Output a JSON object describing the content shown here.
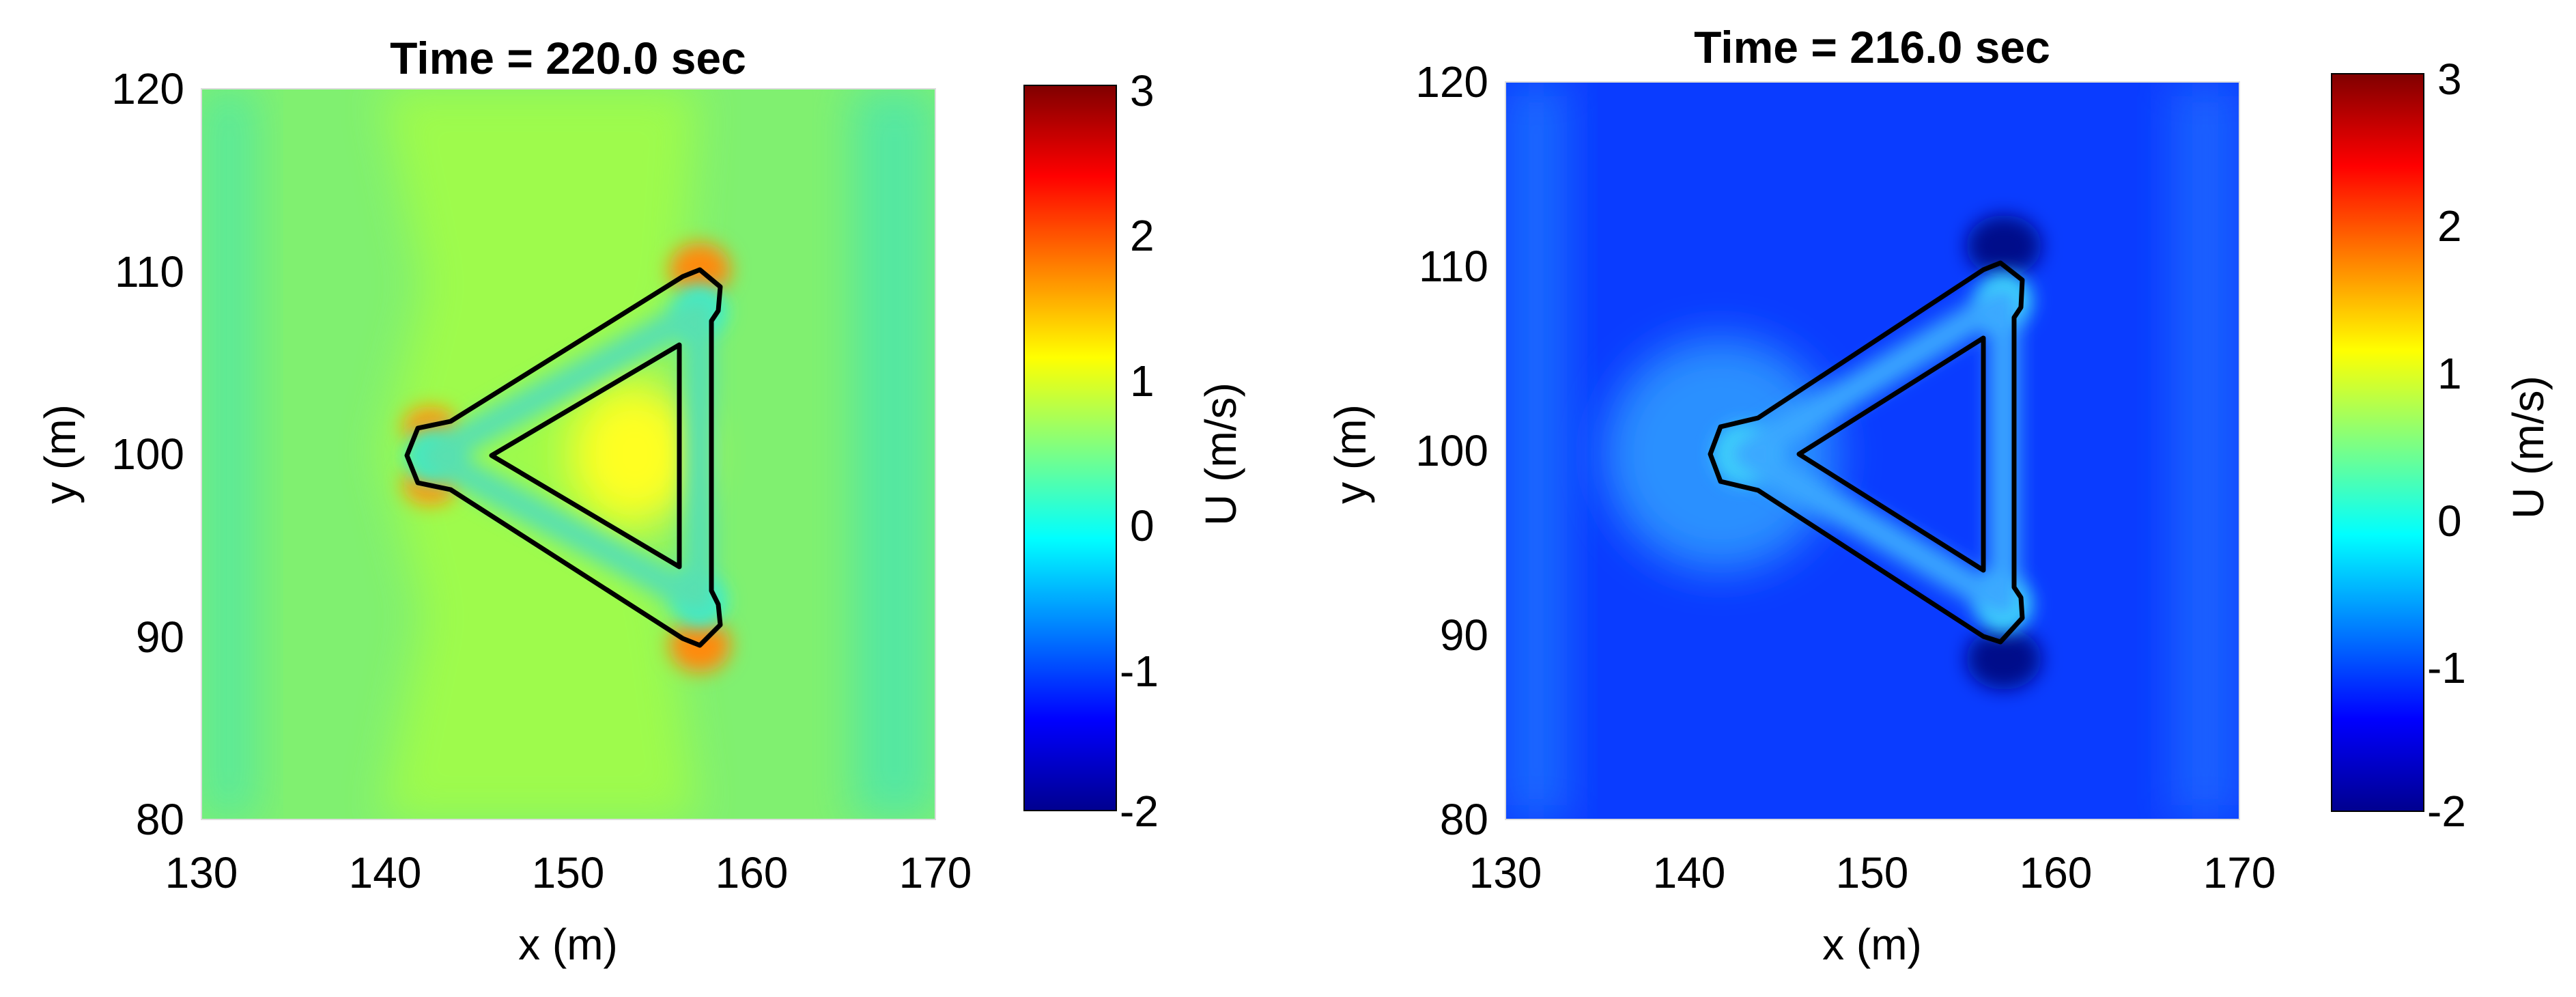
{
  "chart_data": [
    {
      "type": "heatmap",
      "title": "Time = 220.0 sec",
      "xlabel": "x (m)",
      "ylabel": "y (m)",
      "xlim": [
        130,
        170
      ],
      "ylim": [
        80,
        120
      ],
      "xticks": [
        "130",
        "140",
        "150",
        "160",
        "170"
      ],
      "yticks": [
        "80",
        "90",
        "100",
        "110",
        "120"
      ],
      "colorbar": {
        "label": "U (m/s)",
        "range": [
          -2,
          3
        ],
        "ticks": [
          "-2",
          "-1",
          "0",
          "1",
          "2",
          "3"
        ],
        "colormap": "jet"
      },
      "background_value": 0.62,
      "features": [
        {
          "name": "triangular structure outline",
          "vertices_xy": [
            [
              141.5,
              100
            ],
            [
              157,
              108
            ],
            [
              157,
              92
            ]
          ]
        },
        {
          "name": "corner flow hotspots",
          "points": [
            {
              "x": 141.5,
              "y": 100,
              "value": 0.1
            },
            {
              "x": 157,
              "y": 108,
              "value": 0.0
            },
            {
              "x": 157,
              "y": 92,
              "value": 0.0
            },
            {
              "x": 157.5,
              "y": 110,
              "value": 1.6
            },
            {
              "x": 157.5,
              "y": 90,
              "value": 1.6
            },
            {
              "x": 141,
              "y": 101.5,
              "value": 1.5
            },
            {
              "x": 141,
              "y": 98.5,
              "value": 1.5
            },
            {
              "x": 153,
              "y": 100,
              "value": 1.15
            }
          ]
        }
      ]
    },
    {
      "type": "heatmap",
      "title": "Time = 216.0 sec",
      "xlabel": "x (m)",
      "ylabel": "y (m)",
      "xlim": [
        130,
        170
      ],
      "ylim": [
        80,
        120
      ],
      "xticks": [
        "130",
        "140",
        "150",
        "160",
        "170"
      ],
      "yticks": [
        "80",
        "90",
        "100",
        "110",
        "120"
      ],
      "colorbar": {
        "label": "U (m/s)",
        "range": [
          -2,
          3
        ],
        "ticks": [
          "-2",
          "-1",
          "0",
          "1",
          "2",
          "3"
        ],
        "colormap": "jet"
      },
      "background_value": -1.2,
      "features": [
        {
          "name": "triangular structure outline",
          "vertices_xy": [
            [
              141.5,
              100
            ],
            [
              157,
              108
            ],
            [
              157,
              92
            ]
          ]
        },
        {
          "name": "corner flow hotspots",
          "points": [
            {
              "x": 141.5,
              "y": 100,
              "value": -0.1
            },
            {
              "x": 157,
              "y": 108,
              "value": -0.1
            },
            {
              "x": 157,
              "y": 92,
              "value": -0.1
            },
            {
              "x": 157.5,
              "y": 111,
              "value": -1.9
            },
            {
              "x": 157.5,
              "y": 89,
              "value": -1.9
            },
            {
              "x": 137,
              "y": 100,
              "value": -0.6
            }
          ]
        }
      ]
    }
  ],
  "colors": {
    "jet": [
      "#00008f",
      "#0000ff",
      "#0080ff",
      "#00ffff",
      "#80ff80",
      "#ffff00",
      "#ff8000",
      "#ff0000",
      "#800000"
    ],
    "outline": "#000000"
  }
}
